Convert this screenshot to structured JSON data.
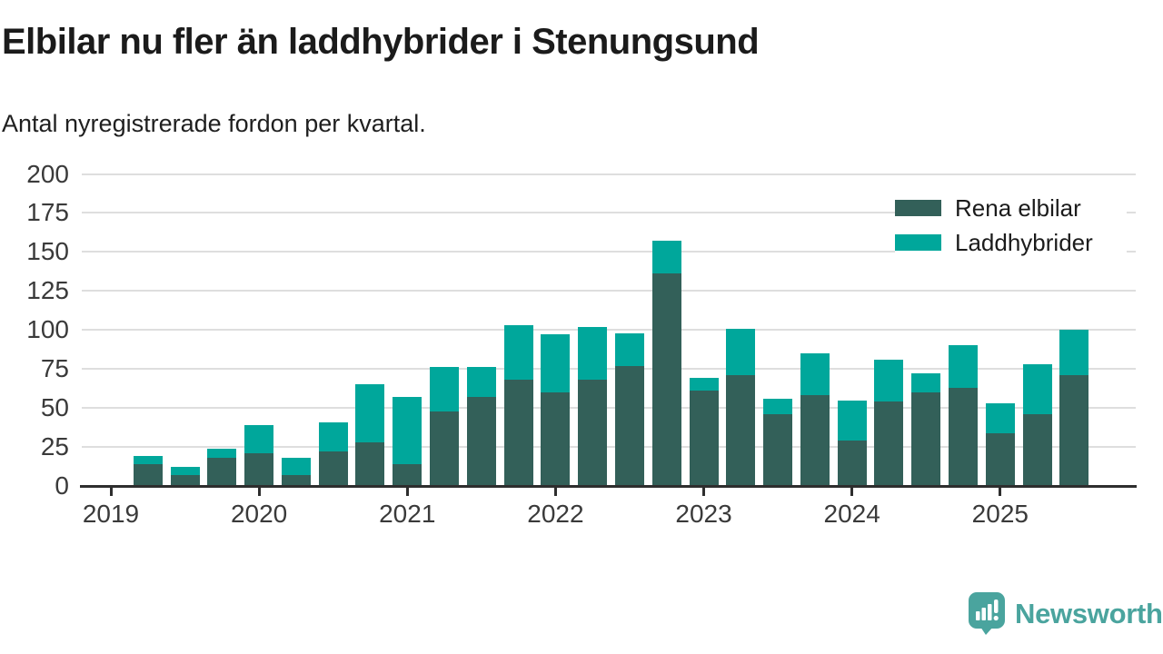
{
  "header": {
    "title": "Elbilar nu fler än laddhybrider i Stenungsund",
    "subtitle": "Antal nyregistrerade fordon per kvartal."
  },
  "legend": {
    "items": [
      {
        "label": "Rena elbilar",
        "color": "#336059"
      },
      {
        "label": "Laddhybrider",
        "color": "#00a79b"
      }
    ]
  },
  "axes": {
    "y_ticks": [
      0,
      25,
      50,
      75,
      100,
      125,
      150,
      175,
      200
    ],
    "x_ticks": [
      "2019",
      "2020",
      "2021",
      "2022",
      "2023",
      "2024",
      "2025"
    ]
  },
  "chart_data": {
    "type": "bar",
    "stacked": true,
    "title": "Elbilar nu fler än laddhybrider i Stenungsund",
    "subtitle": "Antal nyregistrerade fordon per kvartal.",
    "xlabel": "",
    "ylabel": "Antal nyregistrerade fordon per kvartal",
    "ylim": [
      0,
      200
    ],
    "grid": true,
    "legend_position": "top-right",
    "x": [
      "2019 Q2",
      "2019 Q3",
      "2019 Q4",
      "2020 Q1",
      "2020 Q2",
      "2020 Q3",
      "2020 Q4",
      "2021 Q1",
      "2021 Q2",
      "2021 Q3",
      "2021 Q4",
      "2022 Q1",
      "2022 Q2",
      "2022 Q3",
      "2022 Q4",
      "2023 Q1",
      "2023 Q2",
      "2023 Q3",
      "2023 Q4",
      "2024 Q1",
      "2024 Q2",
      "2024 Q3",
      "2024 Q4",
      "2025 Q1",
      "2025 Q2",
      "2025 Q3"
    ],
    "series": [
      {
        "name": "Rena elbilar",
        "color": "#336059",
        "values": [
          14,
          7,
          18,
          21,
          7,
          22,
          28,
          14,
          48,
          57,
          68,
          60,
          68,
          77,
          136,
          61,
          71,
          46,
          58,
          29,
          54,
          60,
          63,
          34,
          46,
          71
        ]
      },
      {
        "name": "Laddhybrider",
        "color": "#00a79b",
        "values": [
          5,
          5,
          6,
          18,
          11,
          19,
          37,
          43,
          28,
          19,
          35,
          37,
          34,
          21,
          21,
          8,
          30,
          10,
          27,
          26,
          27,
          12,
          27,
          19,
          32,
          29
        ]
      }
    ]
  },
  "branding": {
    "logo_text": "Newsworthy",
    "logo_color": "#4aa49e"
  }
}
